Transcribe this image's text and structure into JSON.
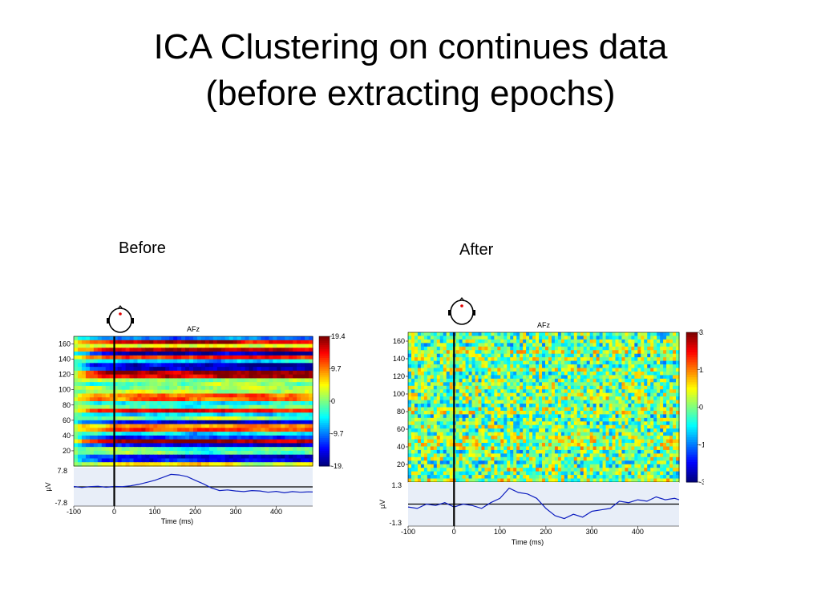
{
  "slide": {
    "title_line1": "ICA Clustering on continues data",
    "title_line2": "(before extracting epochs)"
  },
  "chart_data": [
    {
      "type": "heatmap",
      "panel_caption": "Before",
      "title": "AFz",
      "xlabel": "Time (ms)",
      "erp_ylabel": "µV",
      "xlim": [
        -100,
        490
      ],
      "xticks": [
        -100,
        0,
        100,
        200,
        300,
        400
      ],
      "ylim": [
        0,
        170
      ],
      "yticks": [
        20,
        40,
        60,
        80,
        100,
        120,
        140,
        160
      ],
      "colorbar_ticks": [
        "19.4",
        "9.7",
        "0",
        "-9.7",
        "-19."
      ],
      "color_limits": [
        -19.4,
        19.4
      ],
      "erp_ylim": [
        -7.8,
        7.8
      ],
      "erp_tick_labels": [
        "7.8",
        "-7.8"
      ],
      "event_line_x": 0,
      "erp_trace": {
        "x": [
          -100,
          -80,
          -60,
          -40,
          -20,
          0,
          20,
          40,
          60,
          80,
          100,
          120,
          140,
          160,
          180,
          200,
          220,
          240,
          260,
          280,
          300,
          320,
          340,
          360,
          380,
          400,
          420,
          440,
          460,
          480,
          490
        ],
        "y": [
          0.2,
          -0.3,
          0.1,
          0.3,
          -0.2,
          0.2,
          0.1,
          0.5,
          1.2,
          2.2,
          3.2,
          4.6,
          6.1,
          5.8,
          5.0,
          3.2,
          1.5,
          -0.5,
          -1.8,
          -1.5,
          -2.0,
          -2.3,
          -1.8,
          -2.0,
          -2.6,
          -2.2,
          -2.9,
          -2.3,
          -2.6,
          -2.4,
          -2.5
        ]
      }
    },
    {
      "type": "heatmap",
      "panel_caption": "After",
      "title": "AFz",
      "xlabel": "Time (ms)",
      "erp_ylabel": "µV",
      "xlim": [
        -100,
        490
      ],
      "xticks": [
        -100,
        0,
        100,
        200,
        300,
        400
      ],
      "ylim": [
        0,
        170
      ],
      "yticks": [
        20,
        40,
        60,
        80,
        100,
        120,
        140,
        160
      ],
      "colorbar_ticks": [
        "3.3",
        "1.6",
        "0",
        "-1.6",
        "-3.3"
      ],
      "color_limits": [
        -3.3,
        3.3
      ],
      "erp_ylim": [
        -1.3,
        1.3
      ],
      "erp_tick_labels": [
        "1.3",
        "-1.3"
      ],
      "event_line_x": 0,
      "erp_trace": {
        "x": [
          -100,
          -80,
          -60,
          -40,
          -20,
          0,
          20,
          40,
          60,
          80,
          100,
          120,
          140,
          160,
          180,
          200,
          220,
          240,
          260,
          280,
          300,
          320,
          340,
          360,
          380,
          400,
          420,
          440,
          460,
          480,
          490
        ],
        "y": [
          -0.2,
          -0.3,
          0.0,
          -0.1,
          0.1,
          -0.2,
          0.0,
          -0.1,
          -0.3,
          0.1,
          0.4,
          1.1,
          0.8,
          0.7,
          0.4,
          -0.3,
          -0.8,
          -1.0,
          -0.7,
          -0.9,
          -0.5,
          -0.4,
          -0.3,
          0.2,
          0.1,
          0.3,
          0.2,
          0.5,
          0.3,
          0.4,
          0.3
        ]
      }
    }
  ]
}
